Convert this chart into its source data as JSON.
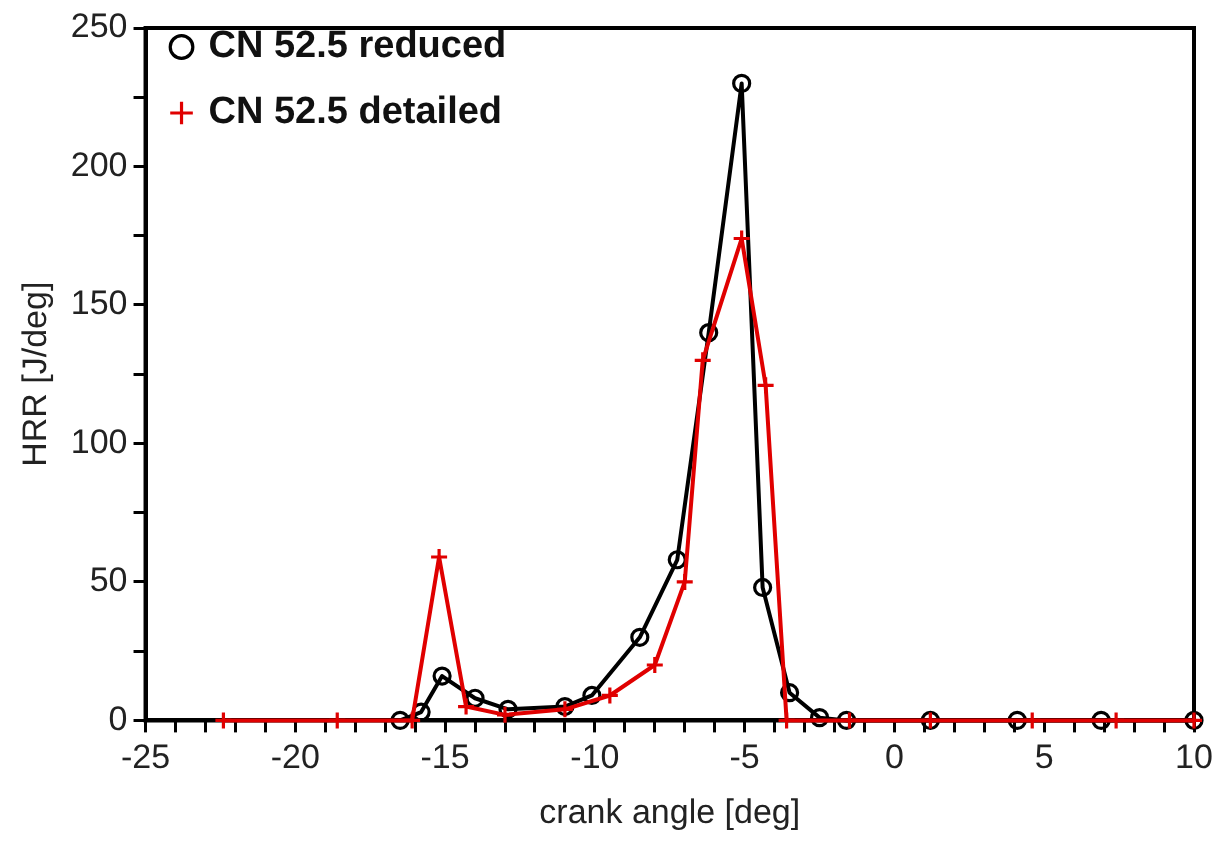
{
  "chart_data": {
    "type": "line",
    "xlabel": "crank angle [deg]",
    "ylabel": "HRR [J/deg]",
    "xlim": [
      -25,
      10
    ],
    "ylim": [
      0,
      250
    ],
    "xticks": [
      -25,
      {
        "value": -24,
        "label": null
      },
      {
        "value": -23,
        "label": null
      },
      {
        "value": -22,
        "label": null
      },
      {
        "value": -21,
        "label": null
      },
      -20,
      {
        "value": -19,
        "label": null
      },
      {
        "value": -18,
        "label": null
      },
      {
        "value": -17,
        "label": null
      },
      {
        "value": -16,
        "label": null
      },
      -15,
      {
        "value": -14,
        "label": null
      },
      {
        "value": -13,
        "label": null
      },
      {
        "value": -12,
        "label": null
      },
      {
        "value": -11,
        "label": null
      },
      -10,
      {
        "value": -9,
        "label": null
      },
      {
        "value": -8,
        "label": null
      },
      {
        "value": -7,
        "label": null
      },
      {
        "value": -6,
        "label": null
      },
      -5,
      {
        "value": -4,
        "label": null
      },
      {
        "value": -3,
        "label": null
      },
      {
        "value": -2,
        "label": null
      },
      {
        "value": -1,
        "label": null
      },
      0,
      {
        "value": 1,
        "label": null
      },
      {
        "value": 2,
        "label": null
      },
      {
        "value": 3,
        "label": null
      },
      {
        "value": 4,
        "label": null
      },
      5,
      {
        "value": 6,
        "label": null
      },
      {
        "value": 7,
        "label": null
      },
      {
        "value": 8,
        "label": null
      },
      {
        "value": 9,
        "label": null
      },
      10
    ],
    "yticks": [
      0,
      {
        "value": 25,
        "label": null
      },
      50,
      {
        "value": 75,
        "label": null
      },
      100,
      {
        "value": 125,
        "label": null
      },
      150,
      {
        "value": 175,
        "label": null
      },
      200,
      {
        "value": 225,
        "label": null
      },
      250
    ],
    "grid": false,
    "legend": "top left",
    "line_style": "solid",
    "series": [
      {
        "name": "CN 52.5 reduced",
        "color": "#000000",
        "marker": "circle",
        "x": [
          -16.5,
          -15.8,
          -15.1,
          -14,
          -12.9,
          -11,
          -10.1,
          -8.5,
          -7.25,
          -6.2,
          -5.1,
          -4.4,
          -3.5,
          -2.5,
          -1.6,
          1.2,
          4.1,
          6.9,
          10
        ],
        "values": [
          0,
          3,
          16,
          8,
          4,
          5,
          9,
          30,
          58,
          140,
          230,
          48,
          10,
          1,
          0,
          0,
          0,
          0,
          0
        ]
      },
      {
        "name": "CN 52.5 detailed",
        "color": "#e00000",
        "marker": "cross",
        "x": [
          -22.4,
          -18.6,
          -16.1,
          -15.2,
          -14.3,
          -13,
          -11,
          -9.5,
          -8,
          -7,
          -6.4,
          -5.1,
          -4.3,
          -3.6,
          -1.5,
          1.2,
          4.6,
          7.4,
          10
        ],
        "values": [
          0,
          0,
          0,
          59,
          5,
          2,
          4,
          9,
          20,
          50,
          130,
          174,
          121,
          0,
          0,
          0,
          0,
          0,
          0
        ]
      }
    ]
  }
}
